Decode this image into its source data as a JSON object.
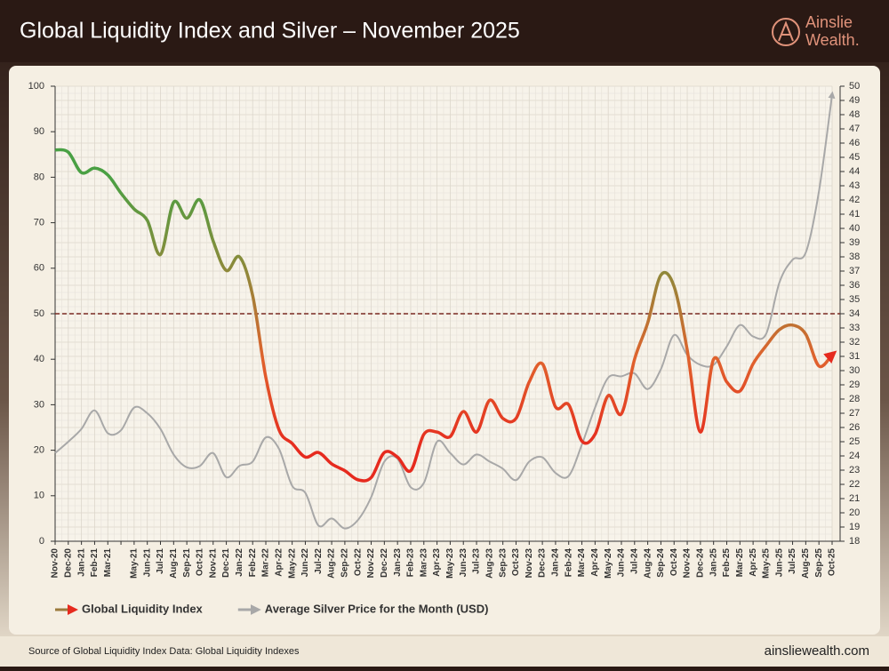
{
  "chart_data": {
    "type": "line",
    "title": "Global Liquidity Index and Silver – November 2025",
    "categories": [
      "Nov-20",
      "Dec-20",
      "Jan-21",
      "Feb-21",
      "Mar-21",
      null,
      "May-21",
      "Jun-21",
      "Jul-21",
      "Aug-21",
      "Sep-21",
      "Oct-21",
      "Nov-21",
      "Dec-21",
      "Jan-22",
      "Feb-22",
      "Mar-22",
      "Apr-22",
      "May-22",
      "Jun-22",
      "Jul-22",
      "Aug-22",
      "Sep-22",
      "Oct-22",
      "Nov-22",
      "Dec-22",
      "Jan-23",
      "Feb-23",
      "Mar-23",
      "Apr-23",
      "May-23",
      "Jun-23",
      "Jul-23",
      "Aug-23",
      "Sep-23",
      "Oct-23",
      "Nov-23",
      "Dec-23",
      "Jan-24",
      "Feb-24",
      "Mar-24",
      "Apr-24",
      "May-24",
      "Jun-24",
      "Jul-24",
      "Aug-24",
      "Sep-24",
      "Oct-24",
      "Nov-24",
      "Dec-24",
      "Jan-25",
      "Feb-25",
      "Mar-25",
      "Apr-25",
      "May-25",
      "Jun-25",
      "Jul-25",
      "Aug-25",
      "Sep-25",
      "Oct-25"
    ],
    "series": [
      {
        "name": "Global Liquidity Index",
        "color": "#9b7a3c",
        "gradient": [
          "#45a046",
          "#4aa043",
          "#8c8a3a",
          "#e0622d",
          "#e62a1e",
          "#e62a1e"
        ],
        "values": [
          86,
          85.5,
          81,
          82,
          80.5,
          76.5,
          73,
          70.5,
          63,
          74.5,
          71,
          75,
          66,
          59.5,
          62.5,
          54,
          36,
          24.5,
          21.5,
          18.5,
          19.5,
          17,
          15.5,
          13.5,
          14,
          19.5,
          18.5,
          15.5,
          23.5,
          24,
          23,
          28.5,
          24,
          31,
          27,
          27,
          35,
          39,
          29.5,
          30,
          22,
          23.5,
          32,
          28,
          40,
          48,
          58.5,
          56,
          42,
          24,
          40,
          35,
          33,
          39,
          43,
          46.5,
          47.5,
          45.5,
          38.5,
          41
        ]
      },
      {
        "name": "Average Silver Price for the Month (USD)",
        "color": "#a8a8a8",
        "axis": "y2",
        "values": [
          24.2,
          25,
          25.9,
          27.2,
          25.6,
          25.8,
          27.4,
          27,
          25.9,
          24.1,
          23.2,
          23.3,
          24.2,
          22.5,
          23.3,
          23.6,
          25.3,
          24.5,
          21.9,
          21.4,
          19.1,
          19.6,
          18.9,
          19.5,
          21.1,
          23.6,
          23.8,
          21.8,
          22.1,
          25,
          24.2,
          23.4,
          24.1,
          23.6,
          23.1,
          22.3,
          23.6,
          23.9,
          22.8,
          22.6,
          24.8,
          27.4,
          29.5,
          29.6,
          29.8,
          28.7,
          30.1,
          32.5,
          31.1,
          30.4,
          30.4,
          31.7,
          33.2,
          32.4,
          32.6,
          36.2,
          37.8,
          38.3,
          42.6,
          49.4
        ]
      }
    ],
    "ylim": [
      0,
      100
    ],
    "yticks": [
      0,
      10,
      20,
      30,
      40,
      50,
      60,
      70,
      80,
      90,
      100
    ],
    "y2lim": [
      18,
      50
    ],
    "y2ticks": [
      18,
      19,
      20,
      21,
      22,
      23,
      24,
      25,
      26,
      27,
      28,
      29,
      30,
      31,
      32,
      33,
      34,
      35,
      36,
      37,
      38,
      39,
      40,
      41,
      42,
      43,
      44,
      45,
      46,
      47,
      48,
      49,
      50
    ],
    "reference_line": 50,
    "reference_color": "#7a2a22",
    "grid": true
  },
  "page": {
    "brand": [
      "Ainslie",
      "Wealth."
    ],
    "source": "Source of Global Liquidity Index Data: Global Liquidity Indexes",
    "website": "ainsliewealth.com"
  }
}
